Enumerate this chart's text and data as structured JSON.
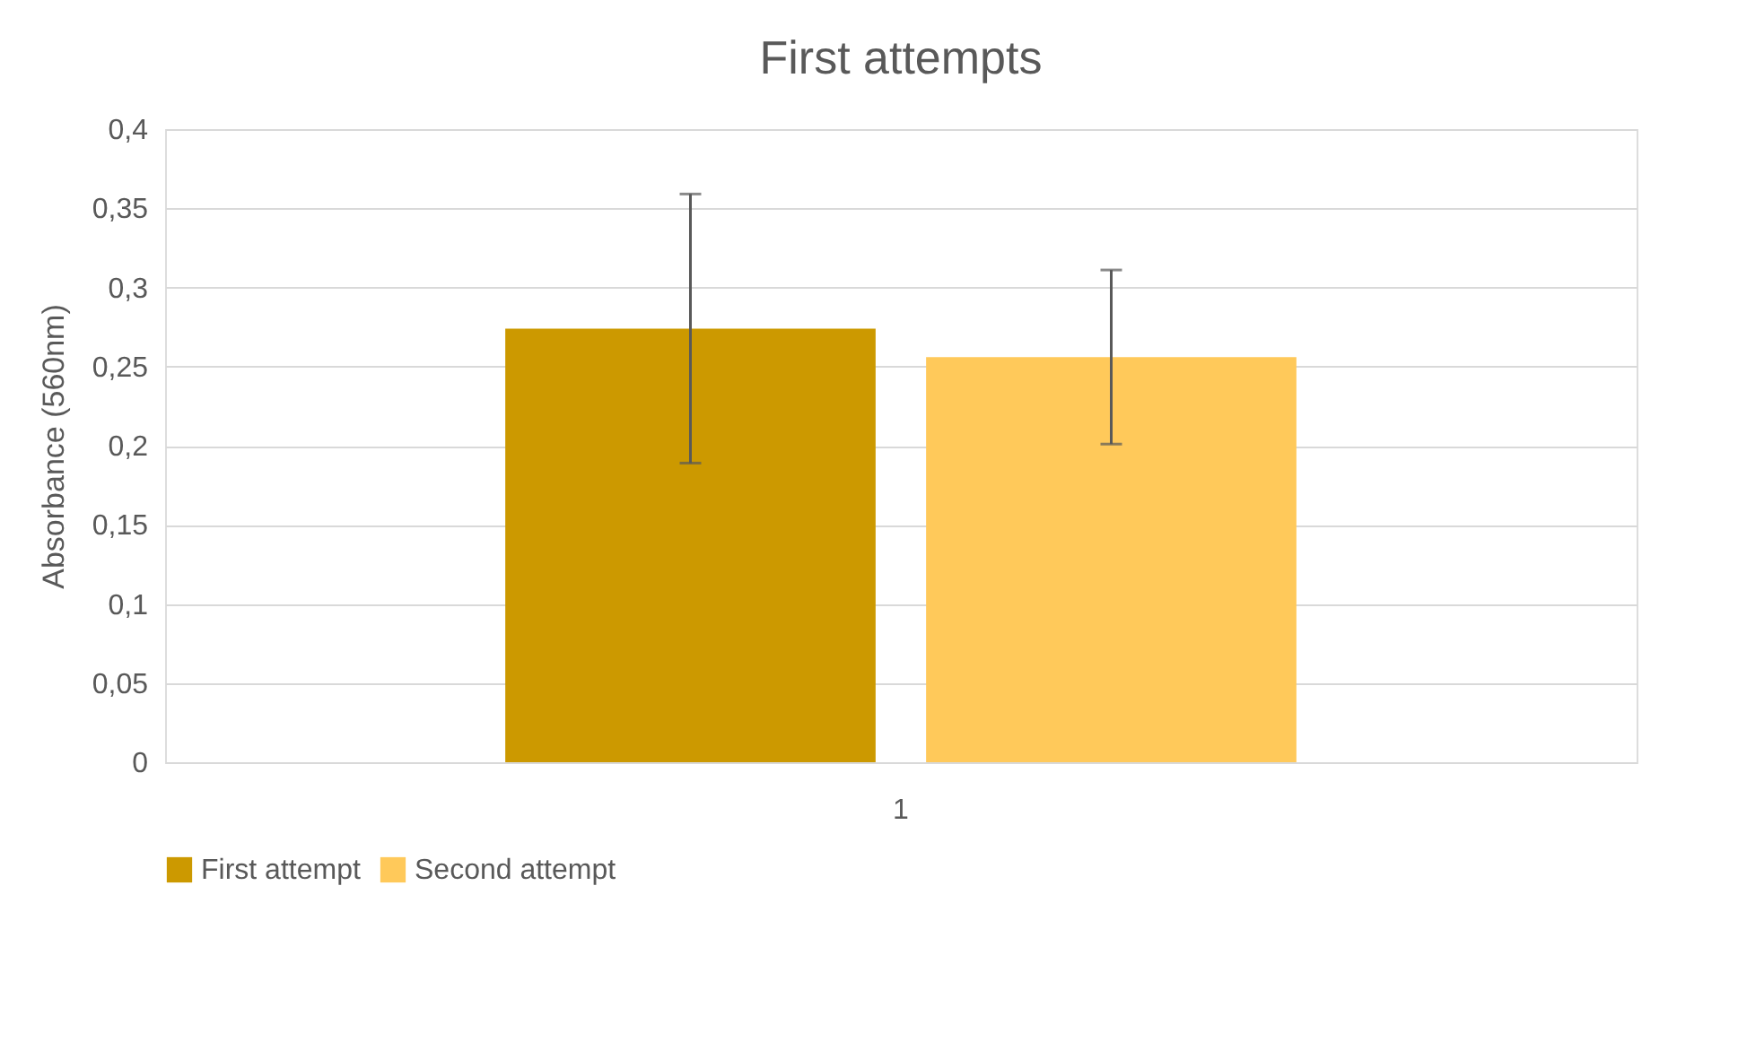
{
  "chart_data": {
    "type": "bar",
    "title": "First attempts",
    "ylabel": "Absorbance (560nm)",
    "categories": [
      "1"
    ],
    "series": [
      {
        "name": "First attempt",
        "color": "#cc9900",
        "values": [
          0.274
        ],
        "errors": [
          0.085
        ]
      },
      {
        "name": "Second attempt",
        "color": "#ffc95a",
        "values": [
          0.256
        ],
        "errors": [
          0.055
        ]
      }
    ],
    "ylim": [
      0,
      0.4
    ],
    "yticks": [
      0,
      {
        "value": 0.05,
        "label": "0,05"
      },
      {
        "value": 0.1,
        "label": "0,1"
      },
      {
        "value": 0.15,
        "label": "0,15"
      },
      {
        "value": 0.2,
        "label": "0,2"
      },
      {
        "value": 0.25,
        "label": "0,25"
      },
      {
        "value": 0.3,
        "label": "0,3"
      },
      {
        "value": 0.35,
        "label": "0,35"
      },
      {
        "value": 0.4,
        "label": "0,4"
      }
    ],
    "grid": "y",
    "legend": "bottom"
  }
}
